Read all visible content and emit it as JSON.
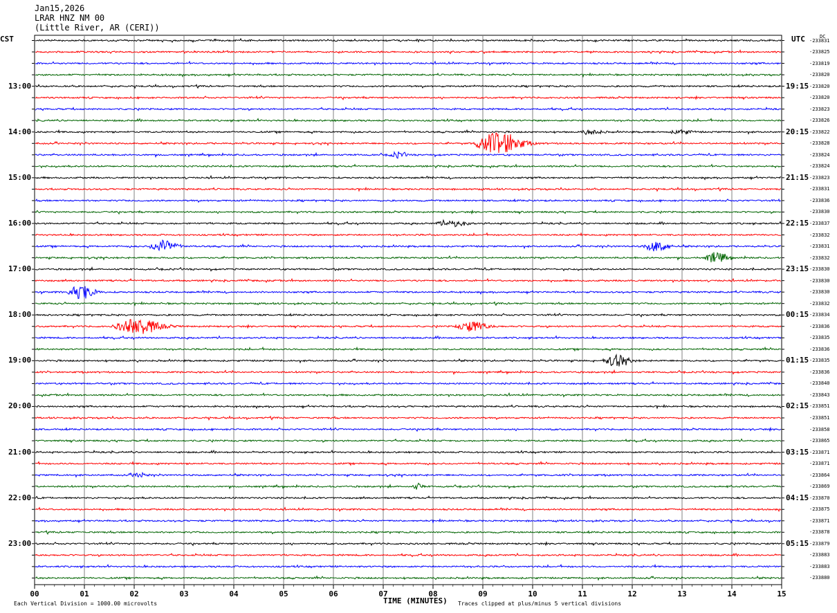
{
  "header": {
    "date": "Jan15,2026",
    "station": "LRAR HNZ NM 00",
    "location": "(Little River, AR (CERI))"
  },
  "left_tz": "CST",
  "right_tz": "UTC",
  "dc_label": "DC",
  "footer": {
    "scale": "Each Vertical Division = 1000.00 microvolts",
    "xlabel": "TIME (MINUTES)",
    "clip": "Traces clipped at plus/minus 5 vertical divisions"
  },
  "colors": {
    "black": "#000000",
    "red": "#ff0000",
    "blue": "#0000ff",
    "green": "#006400",
    "grid": "#808080"
  },
  "chart_data": {
    "type": "line",
    "title": "LRAR HNZ NM 00",
    "xlabel": "TIME (MINUTES)",
    "xlim": [
      0,
      15
    ],
    "x_tick_labels": [
      "00",
      "01",
      "02",
      "03",
      "04",
      "05",
      "06",
      "07",
      "08",
      "09",
      "10",
      "11",
      "12",
      "13",
      "14",
      "15"
    ],
    "trace_color_cycle": [
      "black",
      "red",
      "blue",
      "green"
    ],
    "hour_labels_cst": [
      "13:00",
      "14:00",
      "15:00",
      "16:00",
      "17:00",
      "18:00",
      "19:00",
      "20:00",
      "21:00",
      "22:00",
      "23:00"
    ],
    "hour_labels_utc": [
      "19:15",
      "20:15",
      "21:15",
      "22:15",
      "23:15",
      "00:15",
      "01:15",
      "02:15",
      "03:15",
      "04:15",
      "05:15"
    ],
    "dc_offsets": [
      "-233831",
      "-233825",
      "-233819",
      "-233820",
      "-233820",
      "-233820",
      "-233823",
      "-233826",
      "-233822",
      "-233828",
      "-233824",
      "-233824",
      "-233823",
      "-233831",
      "-233836",
      "-233830",
      "-233837",
      "-233832",
      "-233831",
      "-233832",
      "-233830",
      "-233830",
      "-233830",
      "-233832",
      "-233834",
      "-233836",
      "-233835",
      "-233836",
      "-233835",
      "-233836",
      "-233840",
      "-233843",
      "-233851",
      "-233851",
      "-233858",
      "-233865",
      "-233871",
      "-233871",
      "-233864",
      "-233869",
      "-233870",
      "-233875",
      "-233871",
      "-233878",
      "-233879",
      "-233883",
      "-233883",
      "-233880"
    ],
    "events": [
      {
        "trace": 8,
        "minute": 11.2,
        "amp": 3,
        "width": 0.4
      },
      {
        "trace": 8,
        "minute": 13.0,
        "amp": 3,
        "width": 0.4
      },
      {
        "trace": 9,
        "minute": 9.35,
        "amp": 16,
        "width": 0.9
      },
      {
        "trace": 10,
        "minute": 7.3,
        "amp": 4,
        "width": 0.3
      },
      {
        "trace": 16,
        "minute": 8.4,
        "amp": 4,
        "width": 0.6
      },
      {
        "trace": 18,
        "minute": 2.6,
        "amp": 9,
        "width": 0.5
      },
      {
        "trace": 18,
        "minute": 12.5,
        "amp": 7,
        "width": 0.5
      },
      {
        "trace": 19,
        "minute": 13.7,
        "amp": 8,
        "width": 0.4
      },
      {
        "trace": 22,
        "minute": 0.95,
        "amp": 10,
        "width": 0.5
      },
      {
        "trace": 25,
        "minute": 2.1,
        "amp": 11,
        "width": 0.9
      },
      {
        "trace": 25,
        "minute": 8.8,
        "amp": 7,
        "width": 0.6
      },
      {
        "trace": 28,
        "minute": 11.7,
        "amp": 8,
        "width": 0.5
      },
      {
        "trace": 38,
        "minute": 2.1,
        "amp": 3,
        "width": 0.3
      },
      {
        "trace": 39,
        "minute": 7.7,
        "amp": 4,
        "width": 0.2
      }
    ]
  }
}
